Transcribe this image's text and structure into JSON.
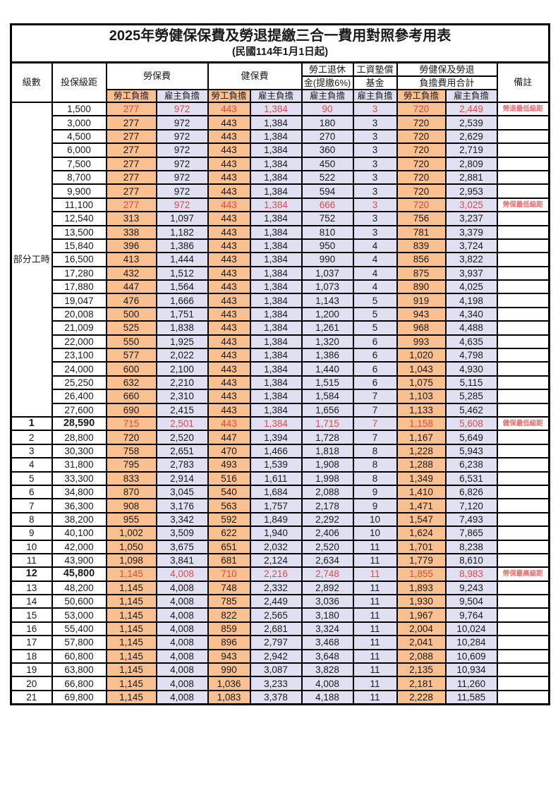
{
  "title": "2025年勞健保保費及勞退提繳三合一費用對照參考用表",
  "subtitle": "(民國114年1月1日起)",
  "colors": {
    "employee_column_bg": "#FAC090",
    "employer_column_bg": "#E0E0F2",
    "highlight_text": "#E34A44",
    "remark_text": "#F26A6A",
    "border": "#000000"
  },
  "header": {
    "level": "級數",
    "bracket": "投保級距",
    "labor_group": "勞保費",
    "health_group": "健保費",
    "pension_l1": "勞工退休",
    "pension_l2": "金(提繳6%)",
    "fund_l1": "工資墊償",
    "fund_l2": "基金",
    "total_l1": "勞健保及勞退",
    "total_l2": "負擔費用合計",
    "remark": "備註",
    "employee_burden": "勞工負擔",
    "employer_burden": "雇主負擔"
  },
  "table": {
    "part_time_label": "部分工時",
    "part_time_span": 23,
    "value_columns": [
      "勞保費勞工負擔",
      "勞保費雇主負擔",
      "健保費勞工負擔",
      "健保費雇主負擔",
      "勞工退休金雇主負擔",
      "工資墊償基金雇主負擔",
      "合計勞工負擔",
      "合計雇主負擔"
    ],
    "rows": [
      {
        "level": "",
        "bracket": "1,500",
        "values": [
          "277",
          "972",
          "443",
          "1,384",
          "90",
          "3",
          "720",
          "2,449"
        ],
        "remark": "勞退最低級距",
        "highlight": true
      },
      {
        "level": "",
        "bracket": "3,000",
        "values": [
          "277",
          "972",
          "443",
          "1,384",
          "180",
          "3",
          "720",
          "2,539"
        ],
        "remark": ""
      },
      {
        "level": "",
        "bracket": "4,500",
        "values": [
          "277",
          "972",
          "443",
          "1,384",
          "270",
          "3",
          "720",
          "2,629"
        ],
        "remark": ""
      },
      {
        "level": "",
        "bracket": "6,000",
        "values": [
          "277",
          "972",
          "443",
          "1,384",
          "360",
          "3",
          "720",
          "2,719"
        ],
        "remark": ""
      },
      {
        "level": "",
        "bracket": "7,500",
        "values": [
          "277",
          "972",
          "443",
          "1,384",
          "450",
          "3",
          "720",
          "2,809"
        ],
        "remark": ""
      },
      {
        "level": "",
        "bracket": "8,700",
        "values": [
          "277",
          "972",
          "443",
          "1,384",
          "522",
          "3",
          "720",
          "2,881"
        ],
        "remark": ""
      },
      {
        "level": "",
        "bracket": "9,900",
        "values": [
          "277",
          "972",
          "443",
          "1,384",
          "594",
          "3",
          "720",
          "2,953"
        ],
        "remark": ""
      },
      {
        "level": "",
        "bracket": "11,100",
        "values": [
          "277",
          "972",
          "443",
          "1,384",
          "666",
          "3",
          "720",
          "3,025"
        ],
        "remark": "勞保最低級距",
        "highlight": true
      },
      {
        "level": "",
        "bracket": "12,540",
        "values": [
          "313",
          "1,097",
          "443",
          "1,384",
          "752",
          "3",
          "756",
          "3,237"
        ],
        "remark": ""
      },
      {
        "level": "",
        "bracket": "13,500",
        "values": [
          "338",
          "1,182",
          "443",
          "1,384",
          "810",
          "3",
          "781",
          "3,379"
        ],
        "remark": ""
      },
      {
        "level": "",
        "bracket": "15,840",
        "values": [
          "396",
          "1,386",
          "443",
          "1,384",
          "950",
          "4",
          "839",
          "3,724"
        ],
        "remark": ""
      },
      {
        "level": "",
        "bracket": "16,500",
        "values": [
          "413",
          "1,444",
          "443",
          "1,384",
          "990",
          "4",
          "856",
          "3,822"
        ],
        "remark": ""
      },
      {
        "level": "",
        "bracket": "17,280",
        "values": [
          "432",
          "1,512",
          "443",
          "1,384",
          "1,037",
          "4",
          "875",
          "3,937"
        ],
        "remark": ""
      },
      {
        "level": "",
        "bracket": "17,880",
        "values": [
          "447",
          "1,564",
          "443",
          "1,384",
          "1,073",
          "4",
          "890",
          "4,025"
        ],
        "remark": ""
      },
      {
        "level": "",
        "bracket": "19,047",
        "values": [
          "476",
          "1,666",
          "443",
          "1,384",
          "1,143",
          "5",
          "919",
          "4,198"
        ],
        "remark": ""
      },
      {
        "level": "",
        "bracket": "20,008",
        "values": [
          "500",
          "1,751",
          "443",
          "1,384",
          "1,200",
          "5",
          "943",
          "4,340"
        ],
        "remark": ""
      },
      {
        "level": "",
        "bracket": "21,009",
        "values": [
          "525",
          "1,838",
          "443",
          "1,384",
          "1,261",
          "5",
          "968",
          "4,488"
        ],
        "remark": ""
      },
      {
        "level": "",
        "bracket": "22,000",
        "values": [
          "550",
          "1,925",
          "443",
          "1,384",
          "1,320",
          "6",
          "993",
          "4,635"
        ],
        "remark": ""
      },
      {
        "level": "",
        "bracket": "23,100",
        "values": [
          "577",
          "2,022",
          "443",
          "1,384",
          "1,386",
          "6",
          "1,020",
          "4,798"
        ],
        "remark": ""
      },
      {
        "level": "",
        "bracket": "24,000",
        "values": [
          "600",
          "2,100",
          "443",
          "1,384",
          "1,440",
          "6",
          "1,043",
          "4,930"
        ],
        "remark": ""
      },
      {
        "level": "",
        "bracket": "25,250",
        "values": [
          "632",
          "2,210",
          "443",
          "1,384",
          "1,515",
          "6",
          "1,075",
          "5,115"
        ],
        "remark": ""
      },
      {
        "level": "",
        "bracket": "26,400",
        "values": [
          "660",
          "2,310",
          "443",
          "1,384",
          "1,584",
          "7",
          "1,103",
          "5,285"
        ],
        "remark": ""
      },
      {
        "level": "",
        "bracket": "27,600",
        "values": [
          "690",
          "2,415",
          "443",
          "1,384",
          "1,656",
          "7",
          "1,133",
          "5,462"
        ],
        "remark": ""
      },
      {
        "level": "1",
        "bracket": "28,590",
        "values": [
          "715",
          "2,501",
          "443",
          "1,384",
          "1,715",
          "7",
          "1,158",
          "5,608"
        ],
        "remark": "健保最低級距",
        "highlight": true,
        "bold": true
      },
      {
        "level": "2",
        "bracket": "28,800",
        "values": [
          "720",
          "2,520",
          "447",
          "1,394",
          "1,728",
          "7",
          "1,167",
          "5,649"
        ],
        "remark": ""
      },
      {
        "level": "3",
        "bracket": "30,300",
        "values": [
          "758",
          "2,651",
          "470",
          "1,466",
          "1,818",
          "8",
          "1,228",
          "5,943"
        ],
        "remark": ""
      },
      {
        "level": "4",
        "bracket": "31,800",
        "values": [
          "795",
          "2,783",
          "493",
          "1,539",
          "1,908",
          "8",
          "1,288",
          "6,238"
        ],
        "remark": ""
      },
      {
        "level": "5",
        "bracket": "33,300",
        "values": [
          "833",
          "2,914",
          "516",
          "1,611",
          "1,998",
          "8",
          "1,349",
          "6,531"
        ],
        "remark": ""
      },
      {
        "level": "6",
        "bracket": "34,800",
        "values": [
          "870",
          "3,045",
          "540",
          "1,684",
          "2,088",
          "9",
          "1,410",
          "6,826"
        ],
        "remark": ""
      },
      {
        "level": "7",
        "bracket": "36,300",
        "values": [
          "908",
          "3,176",
          "563",
          "1,757",
          "2,178",
          "9",
          "1,471",
          "7,120"
        ],
        "remark": ""
      },
      {
        "level": "8",
        "bracket": "38,200",
        "values": [
          "955",
          "3,342",
          "592",
          "1,849",
          "2,292",
          "10",
          "1,547",
          "7,493"
        ],
        "remark": ""
      },
      {
        "level": "9",
        "bracket": "40,100",
        "values": [
          "1,002",
          "3,509",
          "622",
          "1,940",
          "2,406",
          "10",
          "1,624",
          "7,865"
        ],
        "remark": ""
      },
      {
        "level": "10",
        "bracket": "42,000",
        "values": [
          "1,050",
          "3,675",
          "651",
          "2,032",
          "2,520",
          "11",
          "1,701",
          "8,238"
        ],
        "remark": ""
      },
      {
        "level": "11",
        "bracket": "43,900",
        "values": [
          "1,098",
          "3,841",
          "681",
          "2,124",
          "2,634",
          "11",
          "1,779",
          "8,610"
        ],
        "remark": ""
      },
      {
        "level": "12",
        "bracket": "45,800",
        "values": [
          "1,145",
          "4,008",
          "710",
          "2,216",
          "2,748",
          "11",
          "1,855",
          "8,983"
        ],
        "remark": "勞保最高級距",
        "highlight": true,
        "bold": true
      },
      {
        "level": "13",
        "bracket": "48,200",
        "values": [
          "1,145",
          "4,008",
          "748",
          "2,332",
          "2,892",
          "11",
          "1,893",
          "9,243"
        ],
        "remark": ""
      },
      {
        "level": "14",
        "bracket": "50,600",
        "values": [
          "1,145",
          "4,008",
          "785",
          "2,449",
          "3,036",
          "11",
          "1,930",
          "9,504"
        ],
        "remark": ""
      },
      {
        "level": "15",
        "bracket": "53,000",
        "values": [
          "1,145",
          "4,008",
          "822",
          "2,565",
          "3,180",
          "11",
          "1,967",
          "9,764"
        ],
        "remark": ""
      },
      {
        "level": "16",
        "bracket": "55,400",
        "values": [
          "1,145",
          "4,008",
          "859",
          "2,681",
          "3,324",
          "11",
          "2,004",
          "10,024"
        ],
        "remark": ""
      },
      {
        "level": "17",
        "bracket": "57,800",
        "values": [
          "1,145",
          "4,008",
          "896",
          "2,797",
          "3,468",
          "11",
          "2,041",
          "10,284"
        ],
        "remark": ""
      },
      {
        "level": "18",
        "bracket": "60,800",
        "values": [
          "1,145",
          "4,008",
          "943",
          "2,942",
          "3,648",
          "11",
          "2,088",
          "10,609"
        ],
        "remark": ""
      },
      {
        "level": "19",
        "bracket": "63,800",
        "values": [
          "1,145",
          "4,008",
          "990",
          "3,087",
          "3,828",
          "11",
          "2,135",
          "10,934"
        ],
        "remark": ""
      },
      {
        "level": "20",
        "bracket": "66,800",
        "values": [
          "1,145",
          "4,008",
          "1,036",
          "3,233",
          "4,008",
          "11",
          "2,181",
          "11,260"
        ],
        "remark": ""
      },
      {
        "level": "21",
        "bracket": "69,800",
        "values": [
          "1,145",
          "4,008",
          "1,083",
          "3,378",
          "4,188",
          "11",
          "2,228",
          "11,585"
        ],
        "remark": ""
      }
    ]
  }
}
